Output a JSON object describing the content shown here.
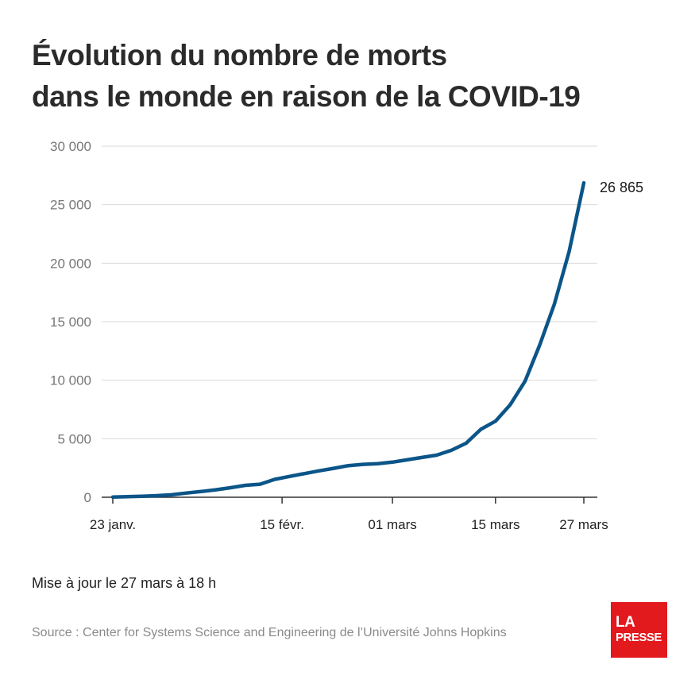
{
  "title": {
    "line1": "Évolution du nombre de morts",
    "line2": "dans le monde en raison de la COVID-19"
  },
  "updated": "Mise à jour le 27 mars à 18 h",
  "source": "Source : Center for Systems Science and Engineering de l’Université Johns Hopkins",
  "logo": {
    "line1": "LA",
    "line2": "PRESSE"
  },
  "colors": {
    "line": "#0b5588",
    "grid": "#d9d9d9",
    "logo_bg": "#e2191d"
  },
  "chart_data": {
    "type": "line",
    "title": "Évolution du nombre de morts dans le monde en raison de la COVID-19",
    "xlabel": "",
    "ylabel": "",
    "ylim": [
      0,
      30000
    ],
    "yticks": [
      0,
      5000,
      10000,
      15000,
      20000,
      25000,
      30000
    ],
    "ytick_labels": [
      "0",
      "5 000",
      "10 000",
      "15 000",
      "20 000",
      "25 000",
      "30 000"
    ],
    "xlim": [
      "2020-01-22",
      "2020-03-27"
    ],
    "xticks": [
      {
        "date": "2020-01-23",
        "label": "23 janv."
      },
      {
        "date": "2020-02-15",
        "label": "15 févr."
      },
      {
        "date": "2020-03-01",
        "label": "01 mars"
      },
      {
        "date": "2020-03-15",
        "label": "15 mars"
      },
      {
        "date": "2020-03-27",
        "label": "27 mars"
      }
    ],
    "grid": true,
    "end_label": "26 865",
    "series": [
      {
        "x": [
          "2020-01-23",
          "2020-01-25",
          "2020-01-27",
          "2020-01-29",
          "2020-01-31",
          "2020-02-02",
          "2020-02-04",
          "2020-02-06",
          "2020-02-08",
          "2020-02-10",
          "2020-02-12",
          "2020-02-14",
          "2020-02-16",
          "2020-02-18",
          "2020-02-20",
          "2020-02-22",
          "2020-02-24",
          "2020-02-26",
          "2020-02-28",
          "2020-03-01",
          "2020-03-03",
          "2020-03-05",
          "2020-03-07",
          "2020-03-09",
          "2020-03-11",
          "2020-03-13",
          "2020-03-15",
          "2020-03-17",
          "2020-03-19",
          "2020-03-21",
          "2020-03-23",
          "2020-03-25",
          "2020-03-27"
        ],
        "values": [
          17,
          56,
          82,
          133,
          213,
          362,
          492,
          636,
          814,
          1018,
          1113,
          1526,
          1775,
          2013,
          2251,
          2470,
          2699,
          2809,
          2872,
          3000,
          3200,
          3400,
          3600,
          4012,
          4615,
          5800,
          6500,
          7900,
          9900,
          13000,
          16500,
          21000,
          26865
        ]
      }
    ]
  }
}
